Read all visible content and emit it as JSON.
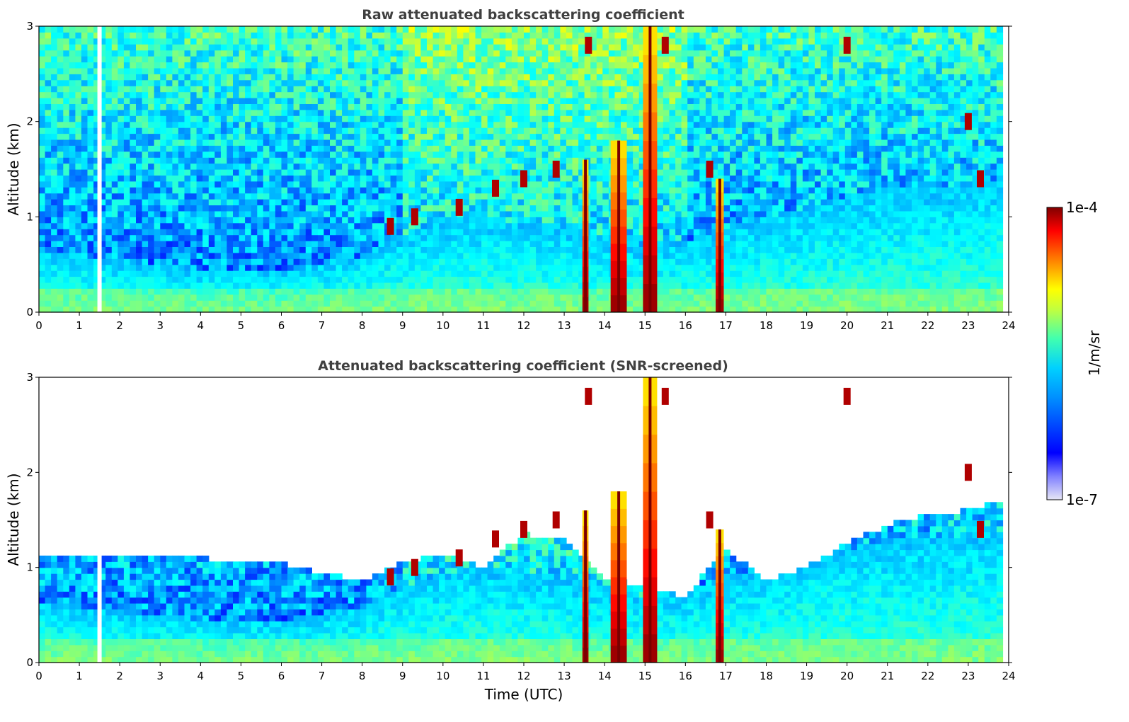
{
  "chart_data": [
    {
      "type": "heatmap",
      "title": "Raw attenuated backscattering coefficient",
      "xlabel": "",
      "ylabel": "Altitude (km)",
      "xlim": [
        0,
        24
      ],
      "ylim": [
        0,
        3
      ],
      "xticks": [
        "0",
        "1",
        "2",
        "3",
        "4",
        "5",
        "6",
        "7",
        "8",
        "9",
        "10",
        "11",
        "12",
        "13",
        "14",
        "15",
        "16",
        "17",
        "18",
        "19",
        "20",
        "21",
        "22",
        "23",
        "24"
      ],
      "yticks": [
        "0",
        "1",
        "2",
        "3"
      ],
      "screened": false,
      "data_gap_time": 1.5,
      "data_end_time": 23.8,
      "boundary_layer_top_km": [
        [
          0,
          0.65
        ],
        [
          2,
          0.55
        ],
        [
          4,
          0.45
        ],
        [
          6,
          0.45
        ],
        [
          8,
          0.6
        ],
        [
          9,
          0.8
        ],
        [
          10,
          0.95
        ],
        [
          11,
          1.0
        ],
        [
          12,
          0.95
        ],
        [
          13,
          0.9
        ],
        [
          15,
          0.7
        ],
        [
          16,
          0.75
        ],
        [
          17,
          0.9
        ],
        [
          18,
          1.0
        ],
        [
          19,
          1.1
        ],
        [
          20,
          1.2
        ],
        [
          21,
          1.3
        ],
        [
          22,
          1.3
        ],
        [
          23,
          1.35
        ],
        [
          23.8,
          1.4
        ]
      ],
      "dense_cloud_columns": [
        {
          "t0": 13.45,
          "t1": 13.6,
          "top_km": 1.6
        },
        {
          "t0": 14.15,
          "t1": 14.55,
          "top_km": 1.8
        },
        {
          "t0": 14.95,
          "t1": 15.3,
          "top_km": 3.0
        },
        {
          "t0": 16.75,
          "t1": 16.95,
          "top_km": 1.4
        }
      ],
      "cloud_patches": [
        {
          "t": 8.7,
          "alt": 0.9
        },
        {
          "t": 9.3,
          "alt": 1.0
        },
        {
          "t": 10.4,
          "alt": 1.1
        },
        {
          "t": 11.3,
          "alt": 1.3
        },
        {
          "t": 12.0,
          "alt": 1.4
        },
        {
          "t": 12.8,
          "alt": 1.5
        },
        {
          "t": 13.6,
          "alt": 2.8
        },
        {
          "t": 15.5,
          "alt": 2.8
        },
        {
          "t": 16.6,
          "alt": 1.5
        },
        {
          "t": 20.0,
          "alt": 2.8
        },
        {
          "t": 23.0,
          "alt": 2.0
        },
        {
          "t": 23.3,
          "alt": 1.4
        }
      ]
    },
    {
      "type": "heatmap",
      "title": "Attenuated backscattering coefficient (SNR-screened)",
      "xlabel": "Time (UTC)",
      "ylabel": "Altitude (km)",
      "xlim": [
        0,
        24
      ],
      "ylim": [
        0,
        3
      ],
      "xticks": [
        "0",
        "1",
        "2",
        "3",
        "4",
        "5",
        "6",
        "7",
        "8",
        "9",
        "10",
        "11",
        "12",
        "13",
        "14",
        "15",
        "16",
        "17",
        "18",
        "19",
        "20",
        "21",
        "22",
        "23",
        "24"
      ],
      "yticks": [
        "0",
        "1",
        "2",
        "3"
      ],
      "screened": true,
      "data_gap_time": 1.5,
      "data_end_time": 23.8,
      "screen_top_km": [
        [
          0,
          1.1
        ],
        [
          2,
          1.15
        ],
        [
          4,
          1.1
        ],
        [
          6,
          1.05
        ],
        [
          7.5,
          0.9
        ],
        [
          8,
          0.85
        ],
        [
          9,
          1.05
        ],
        [
          10,
          1.15
        ],
        [
          11,
          1.0
        ],
        [
          12,
          1.35
        ],
        [
          13,
          1.3
        ],
        [
          14,
          0.9
        ],
        [
          15,
          0.8
        ],
        [
          16,
          0.7
        ],
        [
          17,
          1.2
        ],
        [
          18,
          0.85
        ],
        [
          19,
          1.0
        ],
        [
          20,
          1.25
        ],
        [
          21,
          1.45
        ],
        [
          22,
          1.55
        ],
        [
          23,
          1.6
        ],
        [
          23.8,
          1.7
        ]
      ]
    }
  ],
  "colorbar": {
    "label": "1/m/sr",
    "min_label": "1e-7",
    "max_label": "1e-4",
    "scale": "log",
    "colormap": "jet",
    "colors": [
      "#e6e6f5",
      "#0000ff",
      "#00bfff",
      "#00ff80",
      "#ffff00",
      "#ff8000",
      "#ff0000",
      "#800000"
    ]
  }
}
